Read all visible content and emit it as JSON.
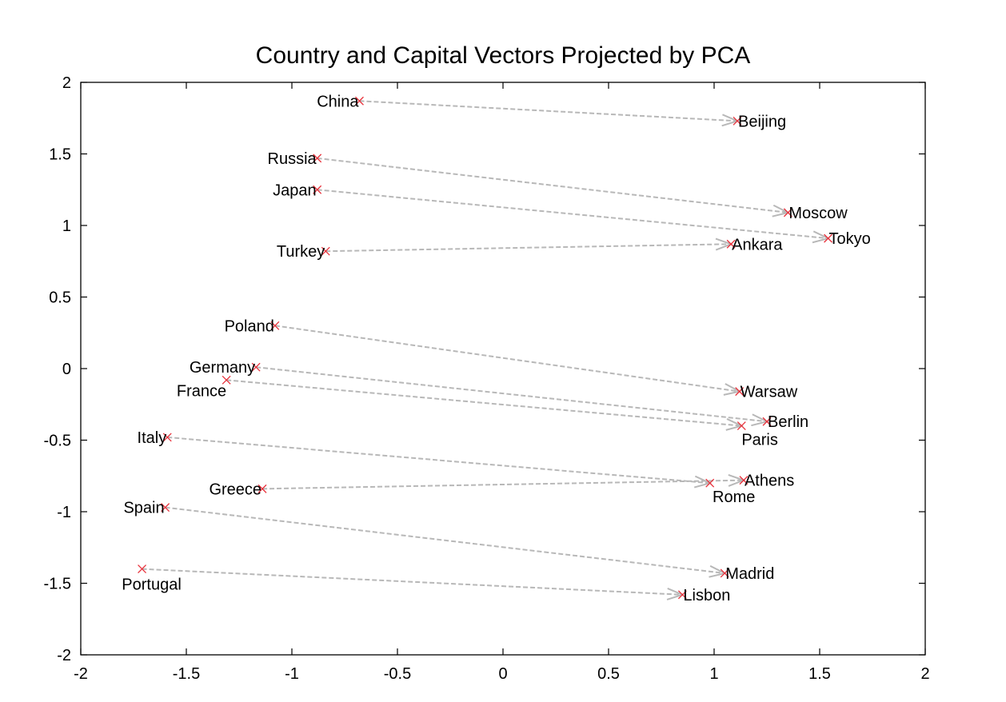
{
  "chart_data": {
    "type": "scatter",
    "title": "Country and Capital Vectors Projected by PCA",
    "xlabel": "",
    "ylabel": "",
    "xlim": [
      -2,
      2
    ],
    "ylim": [
      -2,
      2
    ],
    "x_ticks": [
      -2,
      -1.5,
      -1,
      -0.5,
      0,
      0.5,
      1,
      1.5,
      2
    ],
    "y_ticks": [
      -2,
      -1.5,
      -1,
      -0.5,
      0,
      0.5,
      1,
      1.5,
      2
    ],
    "grid": false,
    "marker_color": "#e8313b",
    "arrow_color": "#b8b8b8",
    "pairs": [
      {
        "country": "China",
        "cx": -0.68,
        "cy": 1.87,
        "capital": "Beijing",
        "kx": 1.11,
        "ky": 1.73
      },
      {
        "country": "Russia",
        "cx": -0.88,
        "cy": 1.47,
        "capital": "Moscow",
        "kx": 1.35,
        "ky": 1.09
      },
      {
        "country": "Japan",
        "cx": -0.88,
        "cy": 1.25,
        "capital": "Tokyo",
        "kx": 1.54,
        "ky": 0.91
      },
      {
        "country": "Turkey",
        "cx": -0.84,
        "cy": 0.82,
        "capital": "Ankara",
        "kx": 1.08,
        "ky": 0.87
      },
      {
        "country": "Poland",
        "cx": -1.08,
        "cy": 0.3,
        "capital": "Warsaw",
        "kx": 1.12,
        "ky": -0.16
      },
      {
        "country": "Germany",
        "cx": -1.17,
        "cy": 0.01,
        "capital": "Berlin",
        "kx": 1.25,
        "ky": -0.37
      },
      {
        "country": "France",
        "cx": -1.31,
        "cy": -0.08,
        "capital": "Paris",
        "kx": 1.13,
        "ky": -0.4
      },
      {
        "country": "Italy",
        "cx": -1.59,
        "cy": -0.48,
        "capital": "Rome",
        "kx": 0.98,
        "ky": -0.8
      },
      {
        "country": "Greece",
        "cx": -1.14,
        "cy": -0.84,
        "capital": "Athens",
        "kx": 1.14,
        "ky": -0.78
      },
      {
        "country": "Spain",
        "cx": -1.6,
        "cy": -0.97,
        "capital": "Madrid",
        "kx": 1.05,
        "ky": -1.43
      },
      {
        "country": "Portugal",
        "cx": -1.71,
        "cy": -1.4,
        "capital": "Lisbon",
        "kx": 0.85,
        "ky": -1.58
      }
    ]
  }
}
